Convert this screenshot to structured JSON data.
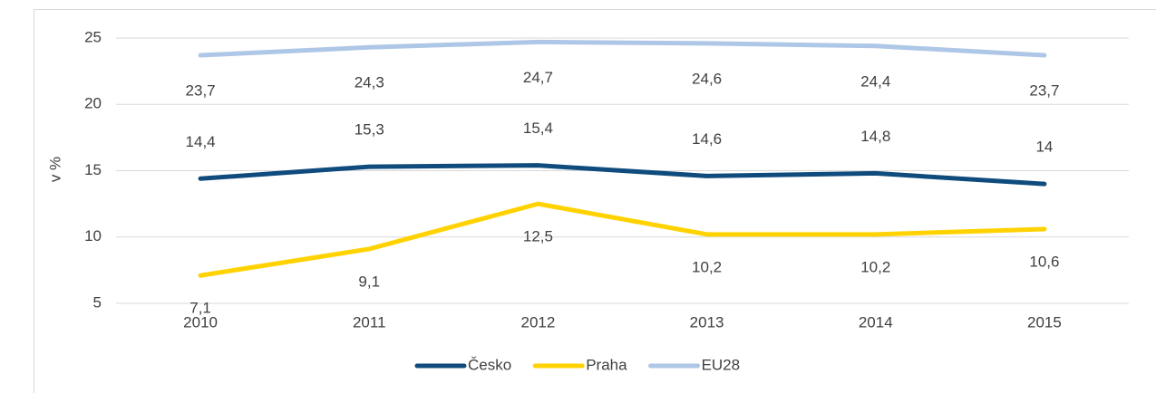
{
  "chart_data": {
    "type": "line",
    "categories": [
      "2010",
      "2011",
      "2012",
      "2013",
      "2014",
      "2015"
    ],
    "y_label": "v %",
    "ylim": [
      5,
      25
    ],
    "yticks": [
      5,
      10,
      15,
      20,
      25
    ],
    "grid": true,
    "legend": "bottom",
    "series": [
      {
        "name": "Česko",
        "color": "#0f4c7d",
        "values": [
          14.4,
          15.3,
          15.4,
          14.6,
          14.8,
          14
        ],
        "value_labels": [
          "14,4",
          "15,3",
          "15,4",
          "14,6",
          "14,8",
          "14"
        ]
      },
      {
        "name": "Praha",
        "color": "#ffd200",
        "values": [
          7.1,
          9.1,
          12.5,
          10.2,
          10.2,
          10.6
        ],
        "value_labels": [
          "7,1",
          "9,1",
          "12,5",
          "10,2",
          "10,2",
          "10,6"
        ]
      },
      {
        "name": "EU28",
        "color": "#aec7e6",
        "values": [
          23.7,
          24.3,
          24.7,
          24.6,
          24.4,
          23.7
        ],
        "value_labels": [
          "23,7",
          "24,3",
          "24,7",
          "24,6",
          "24,4",
          "23,7"
        ]
      }
    ]
  }
}
